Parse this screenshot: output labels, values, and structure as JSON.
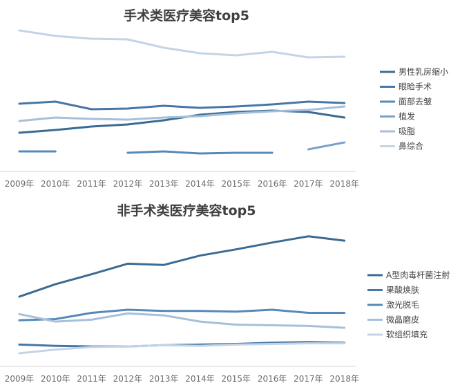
{
  "chart_data": [
    {
      "type": "line",
      "title": "手术类医疗美容top5",
      "categories": [
        "2009年",
        "2010年",
        "2011年",
        "2012年",
        "2013年",
        "2014年",
        "2015年",
        "2016年",
        "2017年",
        "2018年"
      ],
      "ylim": [
        0,
        100
      ],
      "legend_position": "right",
      "series": [
        {
          "name": "男性乳房缩小",
          "color": "#3b6a93",
          "values": [
            24,
            26,
            28.5,
            30,
            33,
            37,
            39,
            40,
            39,
            35
          ]
        },
        {
          "name": "眼睑手术",
          "color": "#4677a4",
          "values": [
            45,
            46.5,
            41,
            41.5,
            43.5,
            42,
            43,
            44.5,
            46.5,
            45.5
          ]
        },
        {
          "name": "面部去皱",
          "color": "#5589b7",
          "values": [
            10.5,
            10.5,
            null,
            9.5,
            10.5,
            9,
            9.5,
            9.5,
            null,
            null
          ]
        },
        {
          "name": "植发",
          "color": "#7ba1ca",
          "values": [
            null,
            null,
            null,
            null,
            null,
            null,
            null,
            null,
            12,
            17
          ]
        },
        {
          "name": "吸脂",
          "color": "#a6bfdb",
          "values": [
            32.5,
            35,
            34,
            33.5,
            35,
            36,
            38,
            39.5,
            40.5,
            43
          ]
        },
        {
          "name": "鼻综合",
          "color": "#c3d4e8",
          "values": [
            98,
            94,
            92,
            91.5,
            85.5,
            81.5,
            80,
            82.5,
            78.5,
            79
          ]
        }
      ]
    },
    {
      "type": "line",
      "title": "非手术类医疗美容top5",
      "categories": [
        "2009年",
        "2010年",
        "2011年",
        "2012年",
        "2013年",
        "2014年",
        "2015年",
        "2016年",
        "2017年",
        "2018年"
      ],
      "ylim": [
        0,
        100
      ],
      "legend_position": "right",
      "series": [
        {
          "name": "A型肉毒杆菌注射",
          "color": "#3b6a93",
          "values": [
            50.5,
            60.5,
            68.5,
            77,
            76,
            83.5,
            88.5,
            94,
            99,
            95.5
          ]
        },
        {
          "name": "果酸焕肤",
          "color": "#4677a4",
          "values": [
            12,
            11,
            10.5,
            10.5,
            11.5,
            12,
            12.5,
            13.5,
            14,
            13.5
          ]
        },
        {
          "name": "激光脱毛",
          "color": "#5589b7",
          "values": [
            31.5,
            32.5,
            37.5,
            40,
            39,
            39,
            38.5,
            40,
            37.5,
            37.5
          ]
        },
        {
          "name": "微晶磨皮",
          "color": "#a6bfdb",
          "values": [
            36.5,
            30.5,
            32,
            37,
            35.5,
            30.5,
            28,
            27.5,
            27,
            25.5
          ]
        },
        {
          "name": "软组织填充",
          "color": "#c3d4e8",
          "values": [
            5,
            8,
            10,
            10.5,
            11.5,
            11,
            12,
            12.5,
            13,
            13
          ]
        }
      ]
    }
  ]
}
